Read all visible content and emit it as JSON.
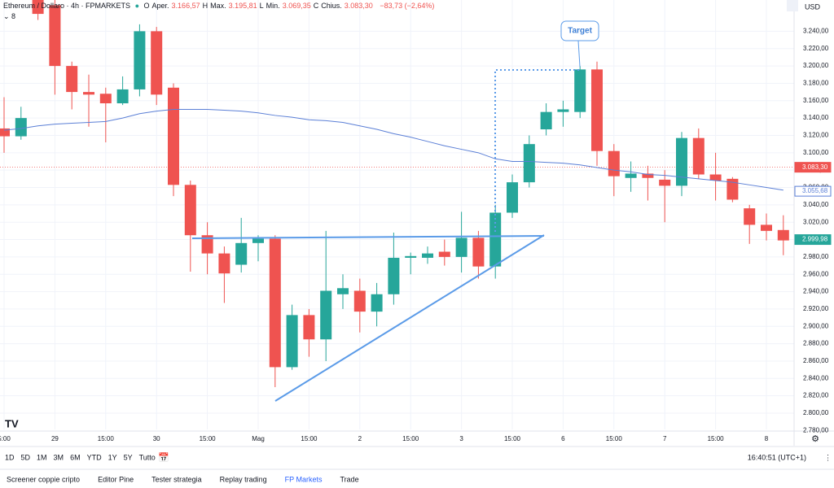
{
  "header": {
    "symbol": "Ethereum / Dollaro · 4h · FPMARKETS",
    "ohlc": [
      {
        "key": "O",
        "name": "Aper.",
        "value": "3.166,57"
      },
      {
        "key": "H",
        "name": "Max.",
        "value": "3.195,81"
      },
      {
        "key": "L",
        "name": "Min.",
        "value": "3.069,35"
      },
      {
        "key": "C",
        "name": "Chius.",
        "value": "3.083,30"
      }
    ],
    "change": "−83,73 (−2,64%)",
    "indicators": "8",
    "currency": "USD"
  },
  "chart_data": {
    "type": "candlestick",
    "up_color": "#26a69a",
    "down_color": "#ef5350",
    "categories": [
      "5:00",
      null,
      null,
      "29",
      null,
      null,
      "15:00",
      null,
      null,
      "30",
      null,
      null,
      "15:00",
      null,
      null,
      "Mag",
      null,
      null,
      "15:00",
      null,
      null,
      "2",
      null,
      null,
      "15:00",
      null,
      null,
      "3",
      null,
      null,
      "15:00",
      null,
      null,
      "6",
      null,
      null,
      "15:00",
      null,
      null,
      "7",
      null,
      null,
      "15:00",
      null,
      null,
      "8",
      null
    ],
    "open": [
      3128,
      3119,
      3300,
      3270,
      3200,
      3170,
      3168,
      3157,
      3173,
      3240,
      3175,
      3063,
      3005,
      2984,
      2971,
      2996,
      3001,
      2853,
      2913,
      2885,
      2937,
      2941,
      2917,
      2937,
      2979,
      2979,
      2986,
      2980,
      3002,
      2969,
      3031,
      3066,
      3127,
      3147,
      3147,
      3196,
      3102,
      3071,
      3076,
      3069,
      3062,
      3117,
      3075,
      3070,
      3036,
      3017,
      3011
    ],
    "high": [
      3164,
      3153,
      3310,
      3290,
      3205,
      3190,
      3175,
      3188,
      3248,
      3245,
      3180,
      3068,
      3020,
      2992,
      3025,
      3005,
      3005,
      2925,
      2920,
      3010,
      2960,
      2955,
      2950,
      3008,
      2985,
      2992,
      3000,
      3032,
      3010,
      3040,
      3075,
      3120,
      3157,
      3160,
      3200,
      3205,
      3110,
      3090,
      3085,
      3080,
      3124,
      3128,
      3100,
      3072,
      3040,
      3030,
      3028
    ],
    "low": [
      3100,
      3115,
      3253,
      3167,
      3150,
      3130,
      3112,
      3155,
      3165,
      3155,
      3050,
      2963,
      2960,
      2927,
      2962,
      2975,
      2830,
      2850,
      2865,
      2860,
      2920,
      2893,
      2900,
      2925,
      2960,
      2972,
      2970,
      2962,
      2955,
      2955,
      3025,
      3060,
      3120,
      3130,
      3140,
      3085,
      3050,
      3055,
      3045,
      3020,
      3050,
      3070,
      3045,
      3043,
      2995,
      2999,
      2982
    ],
    "close": [
      3119,
      3140,
      3260,
      3200,
      3170,
      3167,
      3157,
      3173,
      3240,
      3167,
      3063,
      3005,
      2984,
      2961,
      2996,
      3001,
      2853,
      2913,
      2885,
      2941,
      2944,
      2917,
      2937,
      2979,
      2981,
      2984,
      2980,
      3002,
      2969,
      3031,
      3066,
      3110,
      3147,
      3150,
      3196,
      3102,
      3073,
      3076,
      3071,
      3062,
      3117,
      3075,
      3068,
      3046,
      3017,
      3010,
      2999
    ],
    "series": [
      {
        "name": "MA",
        "color": "#5b7fd6",
        "values": [
          3126,
          3128,
          3131,
          3133,
          3134,
          3135,
          3136,
          3140,
          3145,
          3148,
          3150,
          3150,
          3150,
          3149,
          3148,
          3146,
          3143,
          3141,
          3138,
          3137,
          3135,
          3131,
          3127,
          3122,
          3118,
          3113,
          3108,
          3104,
          3100,
          3093,
          3090,
          3090,
          3089,
          3088,
          3086,
          3083,
          3080,
          3078,
          3075,
          3074,
          3072,
          3070,
          3068,
          3066,
          3063,
          3060,
          3057
        ]
      }
    ],
    "ylim": [
      2770,
      3276
    ],
    "yticks": [
      {
        "value": 2780,
        "label": "2.780,00"
      },
      {
        "value": 2800,
        "label": "2.800,00"
      },
      {
        "value": 2820,
        "label": "2.820,00"
      },
      {
        "value": 2840,
        "label": "2.840,00"
      },
      {
        "value": 2860,
        "label": "2.860,00"
      },
      {
        "value": 2880,
        "label": "2.880,00"
      },
      {
        "value": 2900,
        "label": "2.900,00"
      },
      {
        "value": 2920,
        "label": "2.920,00"
      },
      {
        "value": 2940,
        "label": "2.940,00"
      },
      {
        "value": 2960,
        "label": "2.960,00"
      },
      {
        "value": 2980,
        "label": "2.980,00"
      },
      {
        "value": 3000,
        "label": "3.000,00"
      },
      {
        "value": 3020,
        "label": "3.020,00"
      },
      {
        "value": 3040,
        "label": "3.040,00"
      },
      {
        "value": 3060,
        "label": "3.060,00"
      },
      {
        "value": 3080,
        "label": "3.080,00"
      },
      {
        "value": 3100,
        "label": "3.100,00"
      },
      {
        "value": 3120,
        "label": "3.120,00"
      },
      {
        "value": 3140,
        "label": "3.140,00"
      },
      {
        "value": 3160,
        "label": "3.160,00"
      },
      {
        "value": 3180,
        "label": "3.180,00"
      },
      {
        "value": 3200,
        "label": "3.200,00"
      },
      {
        "value": 3220,
        "label": "3.220,00"
      },
      {
        "value": 3240,
        "label": "3.240,00"
      }
    ],
    "price_labels": [
      {
        "value": 3083.3,
        "label": "3.083,30",
        "color": "#ef5350"
      },
      {
        "value": 3055.68,
        "label": "3.055,68",
        "color": "#5b7fd6"
      },
      {
        "value": 2999.98,
        "label": "2.999,98",
        "color": "#26a69a"
      }
    ],
    "annotation": "Target",
    "grid": true
  },
  "toolbar": {
    "ranges": [
      "1D",
      "5D",
      "1M",
      "3M",
      "6M",
      "YTD",
      "1Y",
      "5Y",
      "Tutto"
    ],
    "clock": "16:40:51 (UTC+1)"
  },
  "tabs": [
    "Screener coppie cripto",
    "Editor Pine",
    "Tester strategia",
    "Replay trading",
    "FP Markets",
    "Trade"
  ]
}
